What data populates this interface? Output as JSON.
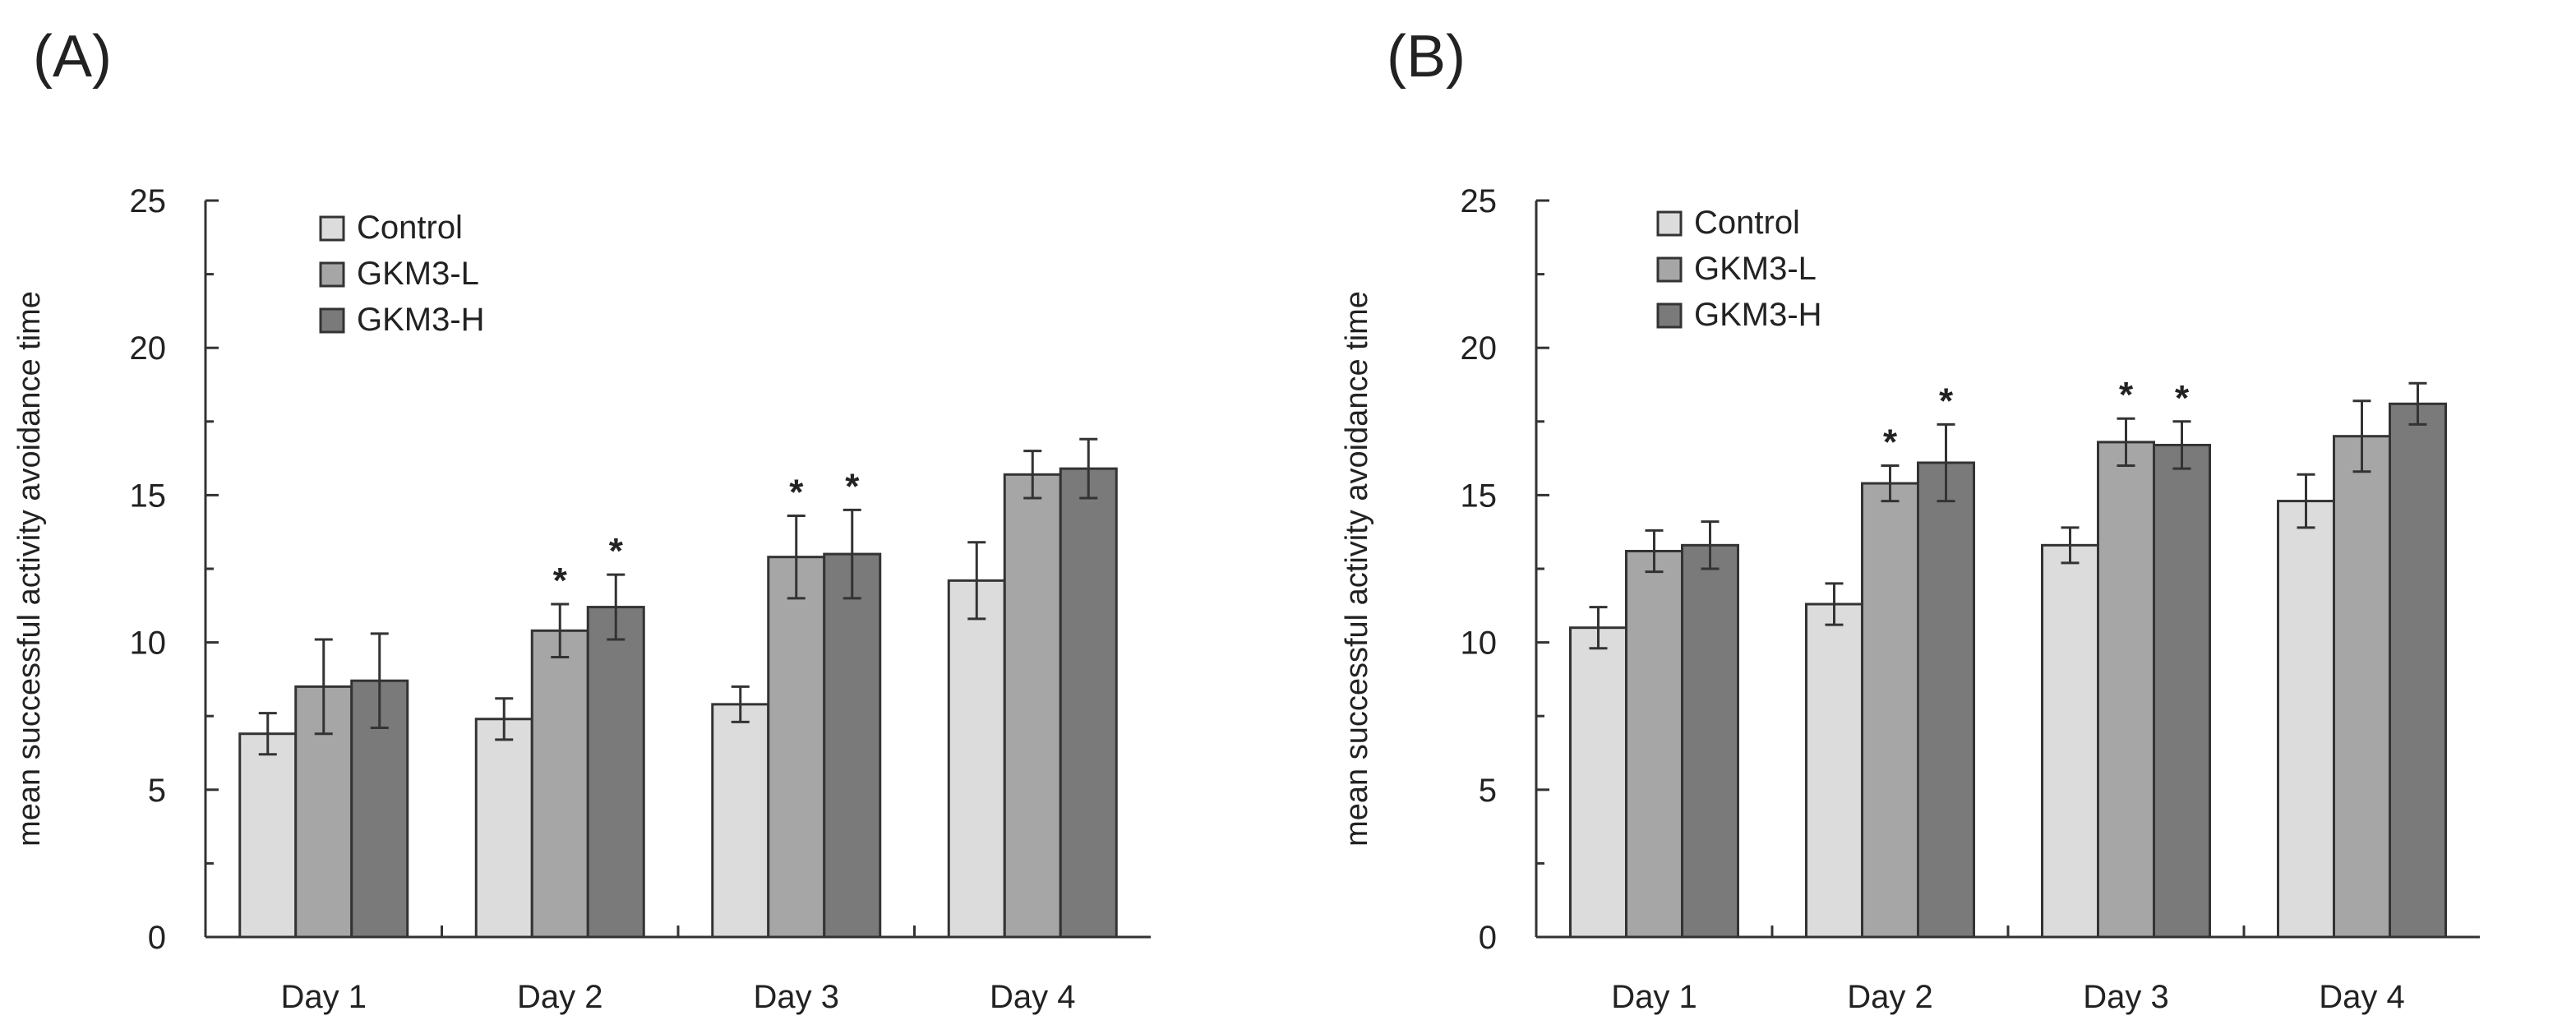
{
  "chart_data": [
    {
      "type": "bar",
      "panel_label": "(A)",
      "categories": [
        "Day 1",
        "Day 2",
        "Day 3",
        "Day 4"
      ],
      "series": [
        {
          "name": "Control",
          "color": "#dcdcdc",
          "values": [
            6.9,
            7.4,
            7.9,
            12.1
          ],
          "errors": [
            0.7,
            0.7,
            0.6,
            1.3
          ],
          "sig": [
            false,
            false,
            false,
            false
          ]
        },
        {
          "name": "GKM3-L",
          "color": "#a6a6a6",
          "values": [
            8.5,
            10.4,
            12.9,
            15.7
          ],
          "errors": [
            1.6,
            0.9,
            1.4,
            0.8
          ],
          "sig": [
            false,
            true,
            true,
            false
          ]
        },
        {
          "name": "GKM3-H",
          "color": "#7a7a7a",
          "values": [
            8.7,
            11.2,
            13.0,
            15.9
          ],
          "errors": [
            1.6,
            1.1,
            1.5,
            1.0
          ],
          "sig": [
            false,
            true,
            true,
            false
          ]
        }
      ],
      "sig_marker": "*",
      "title": "",
      "xlabel": "",
      "ylabel": "mean successful activity avoidance time",
      "ylim": [
        0,
        25
      ],
      "yticks": [
        0,
        5,
        10,
        15,
        20,
        25
      ],
      "legend_position": "top-left",
      "grid": false
    },
    {
      "type": "bar",
      "panel_label": "(B)",
      "categories": [
        "Day 1",
        "Day 2",
        "Day 3",
        "Day 4"
      ],
      "series": [
        {
          "name": "Control",
          "color": "#dcdcdc",
          "values": [
            10.5,
            11.3,
            13.3,
            14.8
          ],
          "errors": [
            0.7,
            0.7,
            0.6,
            0.9
          ],
          "sig": [
            false,
            false,
            false,
            false
          ]
        },
        {
          "name": "GKM3-L",
          "color": "#a6a6a6",
          "values": [
            13.1,
            15.4,
            16.8,
            17.0
          ],
          "errors": [
            0.7,
            0.6,
            0.8,
            1.2
          ],
          "sig": [
            false,
            true,
            true,
            false
          ]
        },
        {
          "name": "GKM3-H",
          "color": "#7a7a7a",
          "values": [
            13.3,
            16.1,
            16.7,
            18.1
          ],
          "errors": [
            0.8,
            1.3,
            0.8,
            0.7
          ],
          "sig": [
            false,
            true,
            true,
            false
          ]
        }
      ],
      "sig_marker": "*",
      "title": "",
      "xlabel": "",
      "ylabel": "mean successful activity avoidance time",
      "ylim": [
        0,
        25
      ],
      "yticks": [
        0,
        5,
        10,
        15,
        20,
        25
      ],
      "legend_position": "top-left",
      "grid": false
    }
  ]
}
